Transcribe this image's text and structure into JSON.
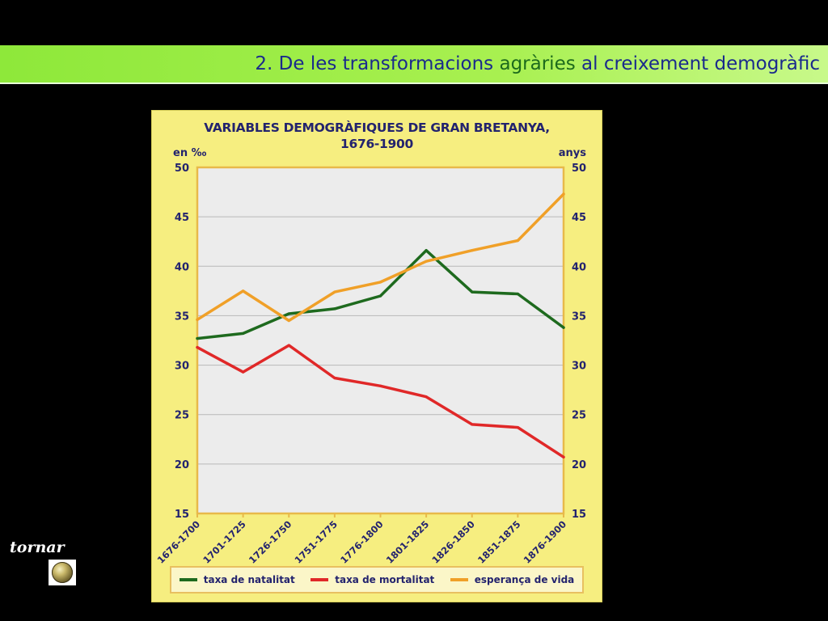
{
  "slide": {
    "title_part1": "2. De les transformacions ",
    "title_part2": "agràries",
    "title_part3": " al creixement demogràfic",
    "back_label": "tornar"
  },
  "colors": {
    "title_bar": "#a8f050",
    "card": "#f6ee80",
    "plot_bg": "#ececec",
    "frame": "#e8b94a",
    "natalitat": "#1e6a1e",
    "mortalitat": "#e02828",
    "esperanca": "#f0a028"
  },
  "chart_data": {
    "type": "line",
    "title_line1": "VARIABLES DEMOGRÀFIQUES DE GRAN BRETANYA,",
    "title_line2": "1676-1900",
    "ylabel_left": "en ‰",
    "ylabel_right": "anys",
    "ylim": [
      15,
      50
    ],
    "yticks": [
      "50",
      "45",
      "40",
      "35",
      "30",
      "25",
      "20",
      "15"
    ],
    "grid": true,
    "legend_position": "bottom",
    "categories": [
      "1676-1700",
      "1701-1725",
      "1726-1750",
      "1751-1775",
      "1776-1800",
      "1801-1825",
      "1826-1850",
      "1851-1875",
      "1876-1900"
    ],
    "series": [
      {
        "name": "taxa de natalitat",
        "color": "#1e6a1e",
        "values": [
          32.7,
          33.2,
          35.2,
          35.7,
          37.0,
          41.6,
          37.4,
          37.2,
          33.8
        ]
      },
      {
        "name": "taxa de mortalitat",
        "color": "#e02828",
        "values": [
          31.8,
          29.3,
          32.0,
          28.7,
          27.9,
          26.8,
          24.0,
          23.7,
          20.7
        ]
      },
      {
        "name": "esperança de vida",
        "color": "#f0a028",
        "values": [
          34.6,
          37.5,
          34.5,
          37.4,
          38.4,
          40.5,
          41.6,
          42.6,
          47.3
        ]
      }
    ]
  }
}
